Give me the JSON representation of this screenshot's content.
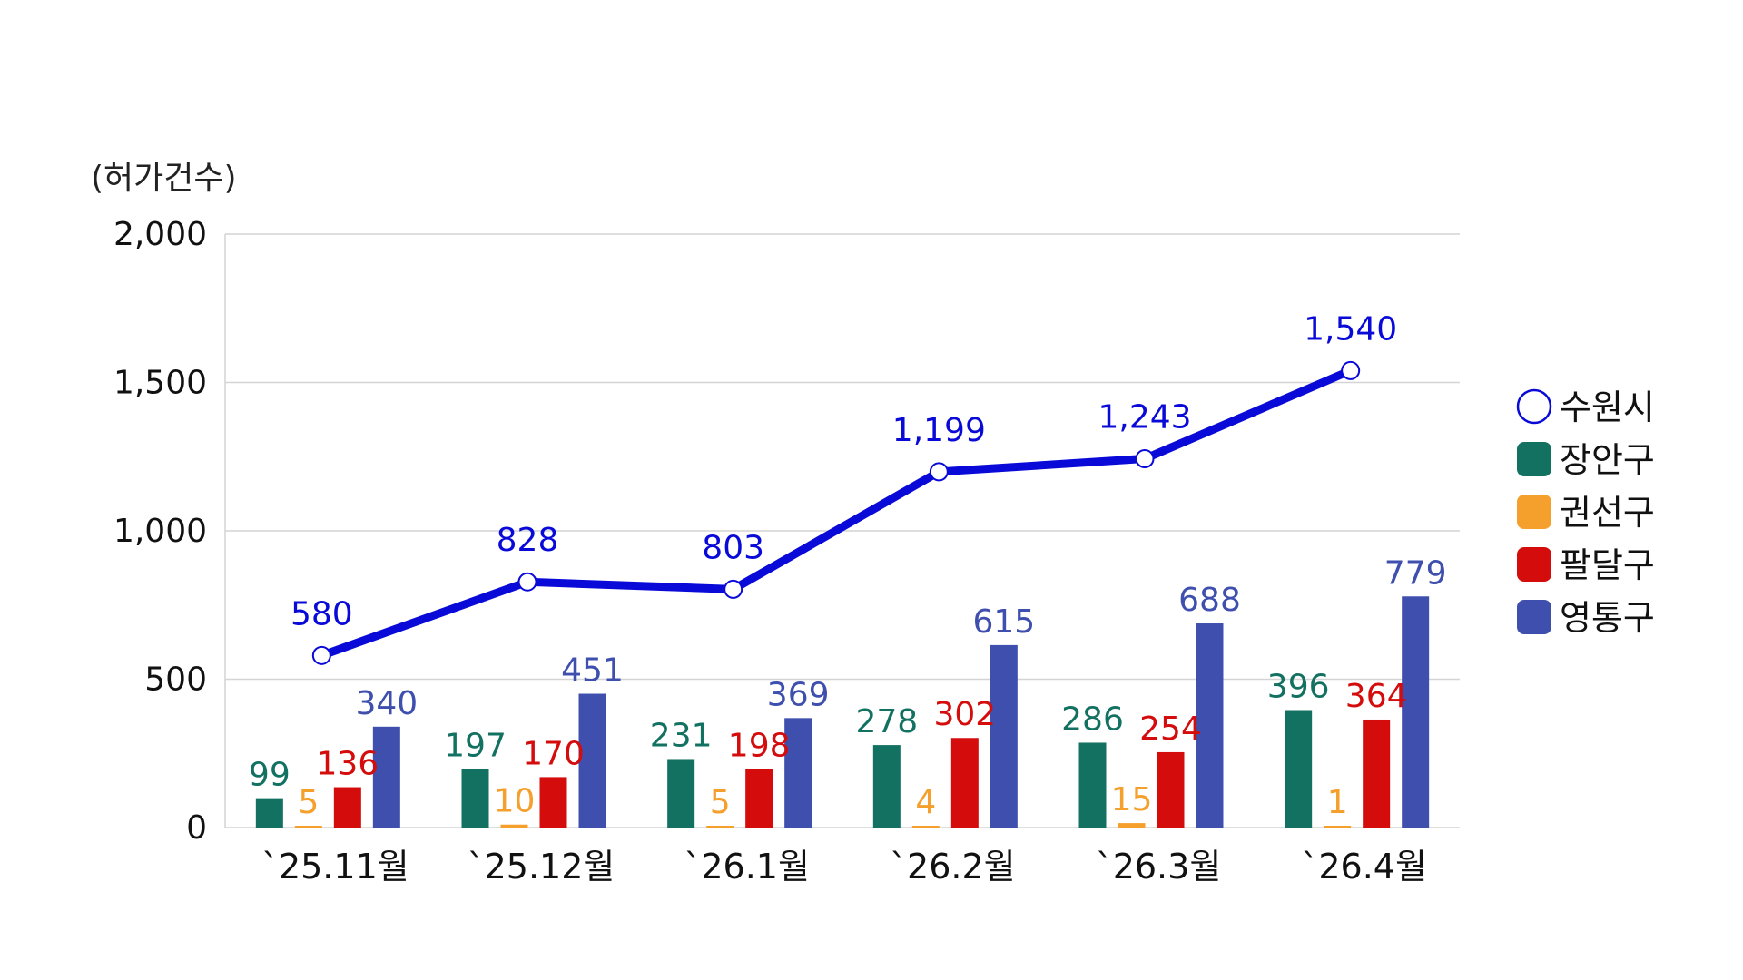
{
  "chart_data": {
    "type": "bar",
    "y_unit_label": "(허가건수)",
    "ylim": [
      0,
      2000
    ],
    "y_ticks": [
      0,
      500,
      1000,
      1500,
      2000
    ],
    "y_tick_labels": [
      "0",
      "500",
      "1,000",
      "1,500",
      "2,000"
    ],
    "grid": true,
    "legend_position": "right",
    "categories": [
      "`25.11월",
      "`25.12월",
      "`26.1월",
      "`26.2월",
      "`26.3월",
      "`26.4월"
    ],
    "line_series": {
      "name": "수원시",
      "color": "#0a0ad8",
      "values": [
        580,
        828,
        803,
        1199,
        1243,
        1540
      ],
      "labels": [
        "580",
        "828",
        "803",
        "1,199",
        "1,243",
        "1,540"
      ]
    },
    "series": [
      {
        "name": "장안구",
        "color": "#137162",
        "values": [
          99,
          197,
          231,
          278,
          286,
          396
        ],
        "labels": [
          "99",
          "197",
          "231",
          "278",
          "286",
          "396"
        ]
      },
      {
        "name": "권선구",
        "color": "#f5a02c",
        "values": [
          5,
          10,
          5,
          4,
          15,
          1
        ],
        "labels": [
          "5",
          "10",
          "5",
          "4",
          "15",
          "1"
        ]
      },
      {
        "name": "팔달구",
        "color": "#d40c0c",
        "values": [
          136,
          170,
          198,
          302,
          254,
          364
        ],
        "labels": [
          "136",
          "170",
          "198",
          "302",
          "254",
          "364"
        ]
      },
      {
        "name": "영통구",
        "color": "#3e4fae",
        "values": [
          340,
          451,
          369,
          615,
          688,
          779
        ],
        "labels": [
          "340",
          "451",
          "369",
          "615",
          "688",
          "779"
        ]
      }
    ]
  }
}
